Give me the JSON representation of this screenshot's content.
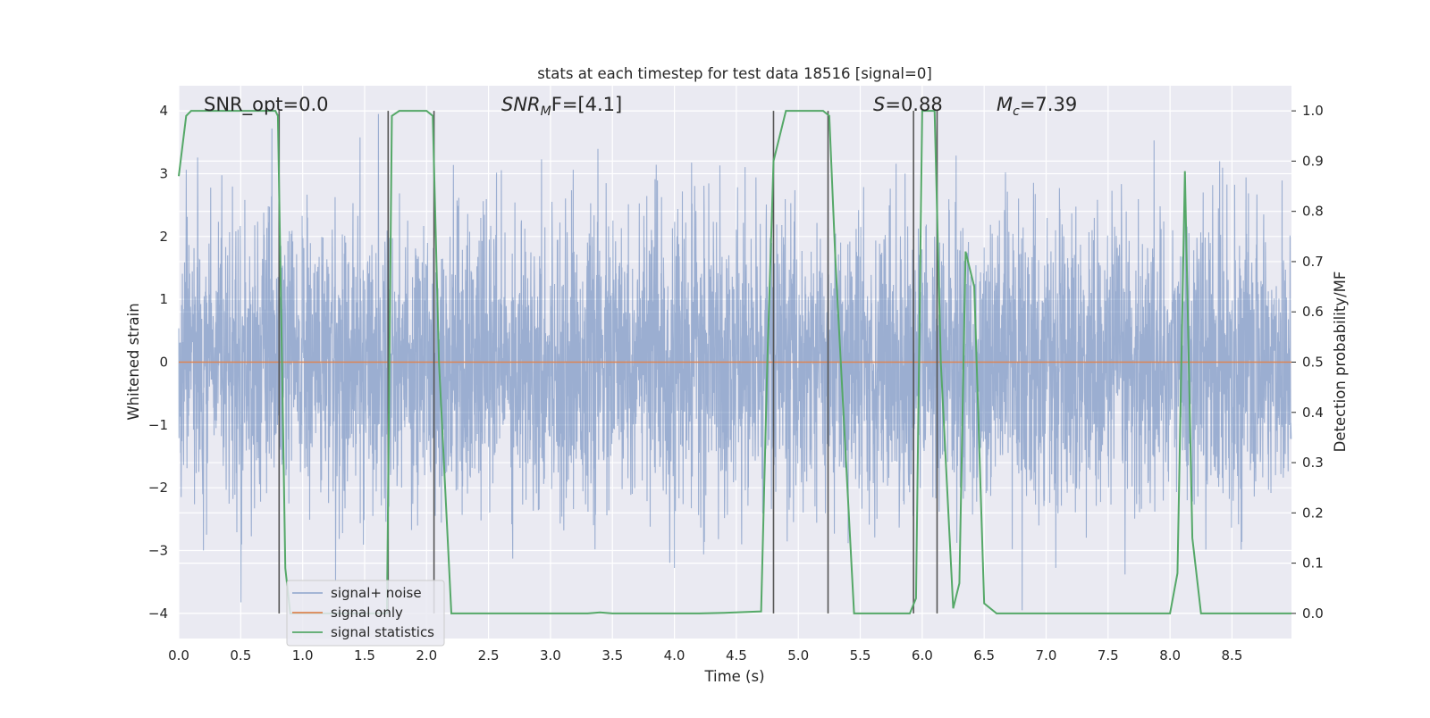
{
  "chart_data": {
    "type": "line",
    "title": "stats at each timestep for test data 18516 [signal=0]",
    "xlabel": "Time (s)",
    "ylabel_left": "Whitened strain",
    "ylabel_right": "Detection probability/MF",
    "xlim": [
      0.0,
      8.98
    ],
    "ylim_left": [
      -4.4,
      4.4
    ],
    "ylim_right": [
      -0.05,
      1.05
    ],
    "xticks": [
      0.0,
      0.5,
      1.0,
      1.5,
      2.0,
      2.5,
      3.0,
      3.5,
      4.0,
      4.5,
      5.0,
      5.5,
      6.0,
      6.5,
      7.0,
      7.5,
      8.0,
      8.5
    ],
    "xtick_labels": [
      "0.0",
      "0.5",
      "1.0",
      "1.5",
      "2.0",
      "2.5",
      "3.0",
      "3.5",
      "4.0",
      "4.5",
      "5.0",
      "5.5",
      "6.0",
      "6.5",
      "7.0",
      "7.5",
      "8.0",
      "8.5"
    ],
    "yticks_left": [
      -4,
      -3,
      -2,
      -1,
      0,
      1,
      2,
      3,
      4
    ],
    "ytick_labels_left": [
      "−4",
      "−3",
      "−2",
      "−1",
      "0",
      "1",
      "2",
      "3",
      "4"
    ],
    "yticks_right": [
      0.0,
      0.1,
      0.2,
      0.3,
      0.4,
      0.5,
      0.6,
      0.7,
      0.8,
      0.9,
      1.0
    ],
    "ytick_labels_right": [
      "0.0",
      "0.1",
      "0.2",
      "0.3",
      "0.4",
      "0.5",
      "0.6",
      "0.7",
      "0.8",
      "0.9",
      "1.0"
    ],
    "grid": true,
    "legend_position": "lower-left",
    "annotations": {
      "snr_opt": "SNR_opt=0.0",
      "snr_mf_base": "SNR",
      "snr_mf_sub": "M",
      "snr_mf_rest": "F=[4.1]",
      "s_stat_var": "S",
      "s_stat_rest": "=0.88",
      "mc_var": "M",
      "mc_sub": "c",
      "mc_rest": "=7.39"
    },
    "series": [
      {
        "name": "signal+ noise",
        "color": "#4c72b0",
        "opacity": 0.5,
        "axis": "left",
        "kind": "whitened-noise",
        "sample_rate_hz": 512,
        "bulk_amplitude": 1.5,
        "peak_amplitude_range": [
          -3.95,
          3.95
        ]
      },
      {
        "name": "signal only",
        "color": "#dd8452",
        "axis": "left",
        "x": [
          0.0,
          8.98
        ],
        "y": [
          0.0,
          0.0
        ]
      },
      {
        "name": "signal statistics",
        "color": "#55a868",
        "axis": "right",
        "x": [
          0.0,
          0.06,
          0.1,
          0.3,
          0.78,
          0.8,
          0.83,
          0.86,
          0.9,
          1.68,
          1.72,
          1.78,
          2.0,
          2.05,
          2.1,
          2.2,
          3.3,
          3.4,
          3.5,
          4.2,
          4.4,
          4.7,
          4.75,
          4.8,
          4.9,
          5.2,
          5.25,
          5.3,
          5.45,
          5.9,
          5.95,
          6.0,
          6.1,
          6.15,
          6.25,
          6.3,
          6.35,
          6.42,
          6.5,
          6.6,
          8.0,
          8.06,
          8.12,
          8.18,
          8.25,
          8.98
        ],
        "y": [
          0.87,
          0.99,
          1.0,
          1.0,
          1.0,
          0.99,
          0.55,
          0.09,
          0.0,
          0.0,
          0.99,
          1.0,
          1.0,
          0.99,
          0.5,
          0.0,
          0.0,
          0.002,
          0.0,
          0.0,
          0.001,
          0.004,
          0.5,
          0.9,
          1.0,
          1.0,
          0.99,
          0.7,
          0.0,
          0.0,
          0.03,
          1.0,
          1.0,
          0.5,
          0.01,
          0.06,
          0.72,
          0.65,
          0.02,
          0.0,
          0.0,
          0.08,
          0.88,
          0.15,
          0.0,
          0.0
        ]
      }
    ],
    "vertical_markers": {
      "color": "#555555",
      "lines": [
        {
          "x": 0.81,
          "y_from": -4.0,
          "y_to": 4.0
        },
        {
          "x": 1.69,
          "y_from": -4.0,
          "y_to": 4.0
        },
        {
          "x": 2.06,
          "y_from": -4.0,
          "y_to": 4.0
        },
        {
          "x": 4.8,
          "y_from": -4.0,
          "y_to": 4.0
        },
        {
          "x": 5.24,
          "y_from": -4.0,
          "y_to": 4.0
        },
        {
          "x": 5.93,
          "y_from": -4.0,
          "y_to": 4.0
        },
        {
          "x": 6.12,
          "y_from": -4.0,
          "y_to": 4.0
        }
      ]
    }
  }
}
